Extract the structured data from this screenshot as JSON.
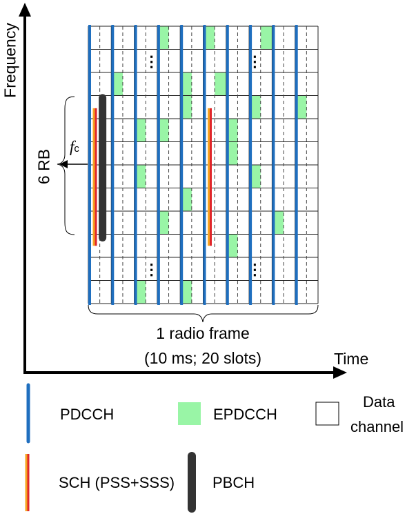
{
  "axes": {
    "y_label": "Frequency",
    "x_label": "Time"
  },
  "grid": {
    "columns": 20,
    "rows": 12,
    "ellipsis_glyph": "⋮",
    "epdcch_cells": [
      [
        0,
        6
      ],
      [
        0,
        10
      ],
      [
        0,
        15
      ],
      [
        2,
        2
      ],
      [
        2,
        8
      ],
      [
        2,
        11
      ],
      [
        3,
        8
      ],
      [
        3,
        14
      ],
      [
        3,
        18
      ],
      [
        4,
        4
      ],
      [
        4,
        6
      ],
      [
        4,
        12
      ],
      [
        5,
        12
      ],
      [
        6,
        4
      ],
      [
        6,
        14
      ],
      [
        7,
        8
      ],
      [
        8,
        6
      ],
      [
        8,
        16
      ],
      [
        9,
        12
      ],
      [
        11,
        4
      ],
      [
        11,
        8
      ]
    ],
    "ellipsis_cells": [
      [
        1,
        5
      ],
      [
        1,
        14
      ],
      [
        10,
        5
      ],
      [
        10,
        14
      ]
    ],
    "colors": {
      "pdcch": "#1f6fbf",
      "epdcch": "#99f5a6",
      "sch_red": "#e0262a",
      "sch_orange": "#f5a623",
      "pbch": "#333333",
      "grid_line": "#222222",
      "dashed_line": "#444444"
    }
  },
  "annotations": {
    "six_rb": "6 RB",
    "fc_main": "f",
    "fc_sub": "c",
    "frame_line1": "1 radio frame",
    "frame_line2": "(10 ms; 20 slots)"
  },
  "legend": {
    "pdcch": "PDCCH",
    "epdcch": "EPDCCH",
    "data_channel_line1": "Data",
    "data_channel_line2": "channel",
    "sch": "SCH (PSS+SSS)",
    "pbch": "PBCH"
  }
}
